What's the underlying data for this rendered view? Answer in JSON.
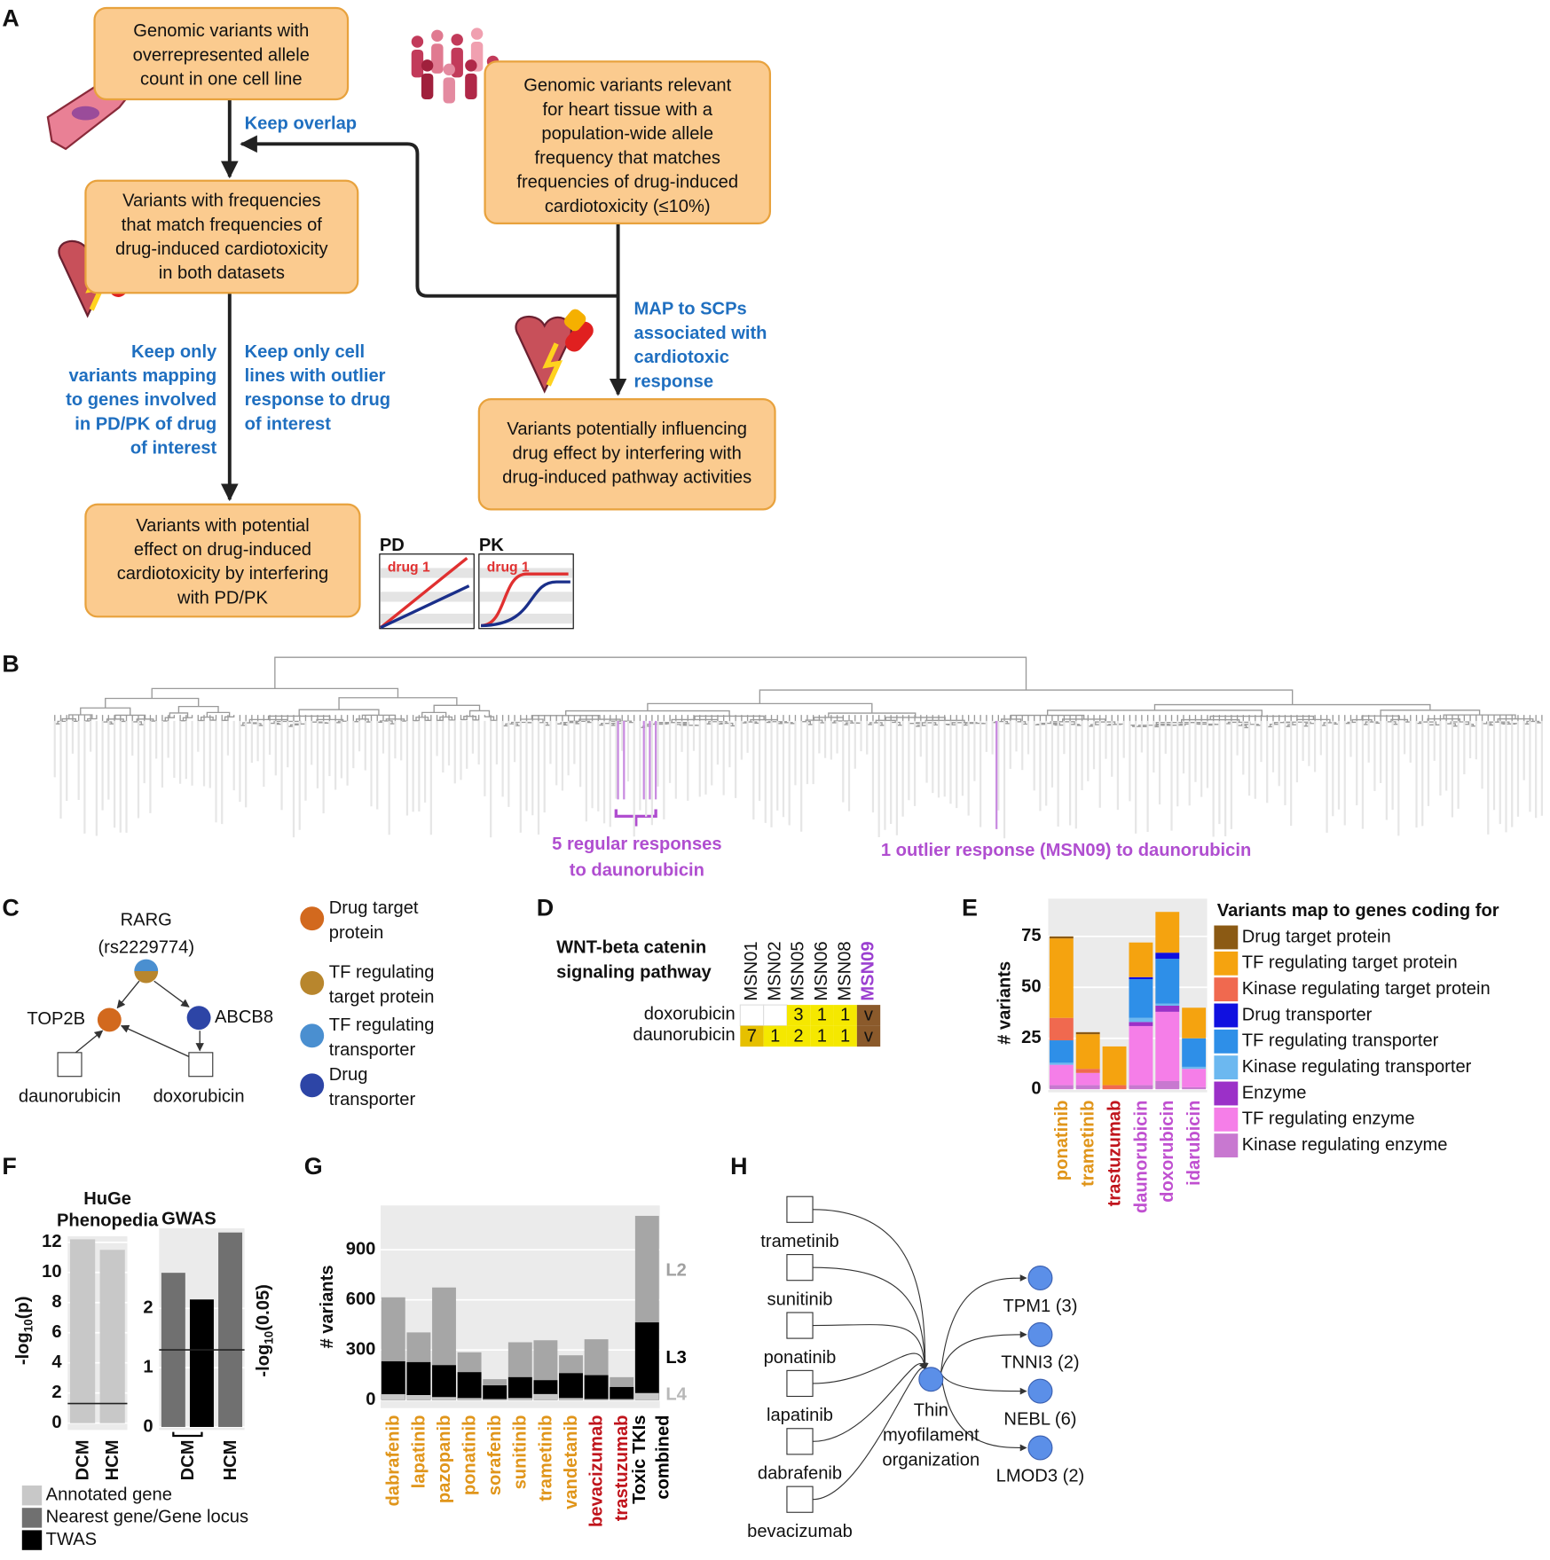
{
  "panel_letters": [
    "A",
    "B",
    "C",
    "D",
    "E",
    "F",
    "G",
    "H"
  ],
  "flowchart": {
    "nodes": [
      {
        "lines": [
          "Genomic variants with",
          "overrepresented allele",
          "count in one cell line"
        ]
      },
      {
        "lines": [
          "Genomic variants relevant",
          "for heart tissue with a",
          "population-wide allele",
          "frequency that matches",
          "frequencies of drug-induced",
          "cardiotoxicity (≤10%)"
        ]
      },
      {
        "lines": [
          "Variants with frequencies",
          "that match frequencies of",
          "drug-induced cardiotoxicity",
          "in both datasets"
        ]
      },
      {
        "lines": [
          "Variants potentially influencing",
          "drug effect by interfering with",
          "drug-induced pathway activities"
        ]
      },
      {
        "lines": [
          "Variants with potential",
          "effect on drug-induced",
          "cardiotoxicity by interfering",
          "with PD/PK"
        ]
      }
    ],
    "edge_labels": [
      {
        "lines": [
          "Keep overlap"
        ]
      },
      {
        "lines": [
          "MAP to SCPs",
          "associated with",
          "cardiotoxic",
          "response"
        ]
      },
      {
        "lines": [
          "Keep only",
          "variants mapping",
          "to genes involved",
          "in PD/PK of drug",
          "of interest"
        ]
      },
      {
        "lines": [
          "Keep only cell",
          "lines with outlier",
          "response to drug",
          "of interest"
        ]
      }
    ]
  },
  "pd_pk": {
    "pd_title": "PD",
    "pk_title": "PK",
    "curve_label": "drug 1"
  },
  "dendrogram": {
    "regular_label": [
      "5 regular responses",
      "to daunorubicin"
    ],
    "outlier_label": "1 outlier response (MSN09) to daunorubicin"
  },
  "network_c": {
    "nodes": [
      {
        "label": [
          "RARG",
          "(rs2229774)"
        ]
      },
      {
        "label": [
          "TOP2B"
        ]
      },
      {
        "label": [
          "ABCB8"
        ]
      },
      {
        "label": [
          "daunorubicin"
        ]
      },
      {
        "label": [
          "doxorubicin"
        ]
      }
    ],
    "legend": [
      {
        "lines": [
          "Drug target",
          "protein"
        ],
        "color": "#d2691e"
      },
      {
        "lines": [
          "TF regulating",
          "target protein"
        ],
        "color": "#b8862d"
      },
      {
        "lines": [
          "TF regulating",
          "transporter"
        ],
        "color": "#4a8fd0"
      },
      {
        "lines": [
          "Drug",
          "transporter"
        ],
        "color": "#2d45a6"
      }
    ]
  },
  "heatmap_d": {
    "title": [
      "WNT-beta catenin",
      "signaling pathway"
    ],
    "columns": [
      "MSN01",
      "MSN02",
      "MSN05",
      "MSN06",
      "MSN08",
      "MSN09"
    ],
    "rows": [
      {
        "name": "doxorubicin",
        "cells": [
          null,
          null,
          3,
          1,
          1,
          "v"
        ]
      },
      {
        "name": "daunorubicin",
        "cells": [
          7,
          1,
          2,
          1,
          1,
          "v"
        ]
      }
    ]
  },
  "chart_data": [
    {
      "type": "bar",
      "stacked": true,
      "ylabel": "# variants",
      "legend_title": "Variants map to genes coding for",
      "categories": [
        "ponatinib",
        "trametinib",
        "trastuzumab",
        "daunorubicin",
        "doxorubicin",
        "idarubicin"
      ],
      "category_colors": [
        "#e0951a",
        "#e0951a",
        "#c0141c",
        "#c050d0",
        "#c050d0",
        "#c050d0"
      ],
      "ylim": [
        -1.5,
        93.5
      ],
      "yticks": [
        0,
        25,
        50,
        75
      ],
      "series": [
        {
          "name": "Drug target protein",
          "color": "#8b5a14",
          "values": [
            1,
            1,
            0,
            0,
            0,
            0
          ]
        },
        {
          "name": "TF regulating target protein",
          "color": "#f5a30f",
          "values": [
            39,
            17,
            19,
            17,
            20,
            15
          ]
        },
        {
          "name": "Kinase regulating target protein",
          "color": "#f0694f",
          "values": [
            11,
            2,
            2,
            0,
            0,
            0
          ]
        },
        {
          "name": "Drug transporter",
          "color": "#1010e0",
          "values": [
            0,
            0,
            0,
            1,
            3,
            0
          ]
        },
        {
          "name": "TF regulating transporter",
          "color": "#2e8fe8",
          "values": [
            11,
            0,
            0,
            19,
            22,
            14
          ]
        },
        {
          "name": "Kinase regulating transporter",
          "color": "#6cb8f0",
          "values": [
            1,
            0,
            0,
            2,
            1,
            1
          ]
        },
        {
          "name": "Enzyme",
          "color": "#9b30c8",
          "values": [
            0,
            0,
            0,
            2,
            3,
            0
          ]
        },
        {
          "name": "TF regulating enzyme",
          "color": "#f57ee8",
          "values": [
            10,
            6,
            0,
            29,
            34,
            9
          ]
        },
        {
          "name": "Kinase regulating enzyme",
          "color": "#c878d0",
          "values": [
            2,
            2,
            0,
            2,
            4,
            1
          ]
        }
      ]
    },
    {
      "type": "bar",
      "title": [
        "HuGe",
        "Phenopedia"
      ],
      "ylabel": [
        "-log",
        "10",
        "(p)"
      ],
      "categories": [
        "DCM",
        "HCM"
      ],
      "ylim": [
        -0.45,
        12.4
      ],
      "yticks": [
        0,
        2,
        4,
        6,
        8,
        10,
        12
      ],
      "hline": 1.3,
      "series": [
        {
          "name": "Annotated gene",
          "color": "#c8c8c8",
          "values": [
            12.2,
            11.5
          ]
        }
      ]
    },
    {
      "type": "bar",
      "title": [
        "GWAS"
      ],
      "hline_label": [
        "-log",
        "10",
        "(0.05)"
      ],
      "categories": [
        "DCM",
        "HCM"
      ],
      "ylim": [
        -0.05,
        3.35
      ],
      "yticks": [
        0,
        1,
        2
      ],
      "hline": 1.3,
      "series": [
        {
          "name": "Nearest gene/Gene locus",
          "color": "#707070",
          "values": [
            2.6,
            3.28
          ]
        },
        {
          "name": "TWAS",
          "color": "#000000",
          "values": [
            2.15,
            null
          ]
        }
      ]
    },
    {
      "type": "bar",
      "overlay": true,
      "ylabel": "# variants",
      "categories": [
        "dabrafenib",
        "lapatinib",
        "pazopanib",
        "ponatinib",
        "sorafenib",
        "sunitinib",
        "trametinib",
        "vandetanib",
        "bevacizumab",
        "trastuzumab",
        [
          "Toxic TKIs",
          "combined"
        ]
      ],
      "category_colors": [
        "#e0951a",
        "#e0951a",
        "#e0951a",
        "#e0951a",
        "#e0951a",
        "#e0951a",
        "#e0951a",
        "#e0951a",
        "#c0141c",
        "#c0141c",
        "#000000"
      ],
      "ylim": [
        -48,
        1165
      ],
      "yticks": [
        0,
        300,
        600,
        900
      ],
      "series": [
        {
          "name": "L2",
          "color": "#a6a6a6",
          "values": [
            615,
            405,
            674,
            286,
            125,
            346,
            358,
            268,
            364,
            137,
            1103
          ]
        },
        {
          "name": "L3",
          "color": "#000000",
          "values": [
            232,
            227,
            209,
            167,
            88,
            137,
            119,
            161,
            149,
            78,
            465
          ]
        },
        {
          "name": "L4",
          "color": "#c8c8c8",
          "values": [
            35,
            30,
            18,
            12,
            6,
            12,
            36,
            12,
            6,
            6,
            42
          ]
        }
      ]
    }
  ],
  "network_h": {
    "drugs": [
      "trametinib",
      "sunitinib",
      "ponatinib",
      "lapatinib",
      "dabrafenib",
      "bevacizumab"
    ],
    "process": [
      "Thin",
      "myofilament",
      "organization"
    ],
    "genes": [
      "TPM1 (3)",
      "TNNI3 (2)",
      "NEBL (6)",
      "LMOD3 (2)"
    ]
  }
}
